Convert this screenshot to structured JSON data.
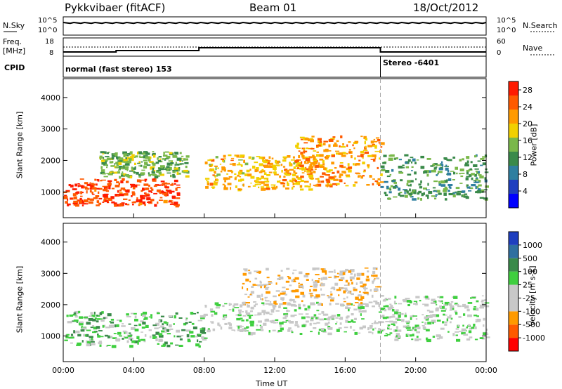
{
  "header": {
    "title": "Pykkvibaer (fitACF)",
    "beam": "Beam 01",
    "date": "18/Oct/2012"
  },
  "params": {
    "nsky_label": "N.Sky",
    "nsearch_label": "N.Search",
    "freq_label_line1": "Freq.",
    "freq_label_line2": "[MHz]",
    "nave_label": "Nave",
    "cpid_label": "CPID",
    "nsky_ticks": [
      "10^5",
      "10^0"
    ],
    "nsearch_ticks": [
      "10^5",
      "10^0"
    ],
    "freq_ticks": [
      "18",
      "8"
    ],
    "nave_ticks": [
      "60",
      "0"
    ],
    "cpid_segments": [
      {
        "start_hour": 0,
        "end_hour": 18.0,
        "label": "normal (fast stereo) 153"
      },
      {
        "start_hour": 18.0,
        "end_hour": 24,
        "label": "Stereo -6401"
      }
    ]
  },
  "axes": {
    "xlabel": "Time UT",
    "ylabel": "Slant Range [km]",
    "xticks": [
      "00:00",
      "04:00",
      "08:00",
      "12:00",
      "16:00",
      "20:00",
      "00:00"
    ],
    "yticks": [
      "1000",
      "2000",
      "3000",
      "4000"
    ]
  },
  "chart_data": [
    {
      "type": "heatmap",
      "name": "power",
      "x_range_hours": [
        0,
        24
      ],
      "y_range_km": [
        180,
        4600
      ],
      "colorbar_label": "Power [dB]",
      "colorbar_ticks": [
        "28",
        "24",
        "20",
        "16",
        "12",
        "8",
        "4"
      ],
      "colorbar_range": [
        0,
        30
      ],
      "colors": [
        "#0000ff",
        "#1f3fbf",
        "#2f7fa0",
        "#3a8a4a",
        "#7ab84a",
        "#f2d000",
        "#ff9a00",
        "#ff5a00",
        "#ff1a00"
      ],
      "scatter_bands": [
        {
          "t0": 0.0,
          "t1": 6.5,
          "r_start": 600,
          "r_end": 1450,
          "value": 27
        },
        {
          "t0": 2.0,
          "t1": 7.0,
          "r_start": 1500,
          "r_end": 2300,
          "value": 14
        },
        {
          "t0": 8.0,
          "t1": 14.0,
          "r_start": 1100,
          "r_end": 2200,
          "value": 20
        },
        {
          "t0": 13.0,
          "t1": 18.0,
          "r_start": 1200,
          "r_end": 2800,
          "value": 22
        },
        {
          "t0": 18.0,
          "t1": 24.0,
          "r_start": 800,
          "r_end": 2200,
          "value": 12
        }
      ]
    },
    {
      "type": "heatmap",
      "name": "velocity",
      "x_range_hours": [
        0,
        24
      ],
      "y_range_km": [
        180,
        4600
      ],
      "colorbar_label": "Velocity [m s-1]",
      "colorbar_ticks": [
        "1000",
        "500",
        "100",
        "25",
        "-25",
        "-100",
        "-500",
        "-1000"
      ],
      "colorbar_range": [
        -1000,
        1000
      ],
      "colors": [
        "#ff0000",
        "#ff5a00",
        "#ff9a00",
        "#c8c8c8",
        "#c8c8c8",
        "#3fcf3f",
        "#3a8a4a",
        "#2f6fa0",
        "#1f3fbf"
      ],
      "scatter_bands": [
        {
          "t0": 0.0,
          "t1": 8.0,
          "r_start": 700,
          "r_end": 1800,
          "value": 200
        },
        {
          "t0": 8.0,
          "t1": 18.0,
          "r_start": 1100,
          "r_end": 2100,
          "value": 0
        },
        {
          "t0": 10.0,
          "t1": 18.0,
          "r_start": 2000,
          "r_end": 3200,
          "value": -300
        },
        {
          "t0": 18.0,
          "t1": 24.0,
          "r_start": 900,
          "r_end": 2300,
          "value": 50
        }
      ]
    }
  ]
}
